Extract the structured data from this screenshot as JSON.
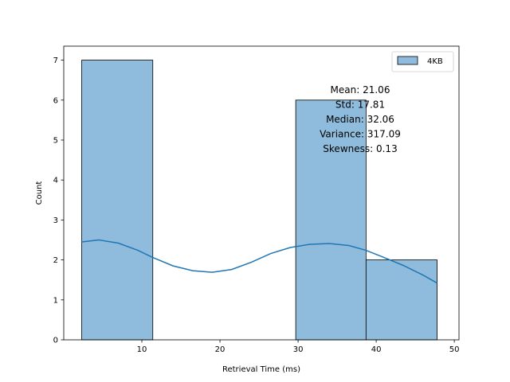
{
  "chart_data": {
    "type": "bar",
    "title": "",
    "xlabel": "Retrieval Time (ms)",
    "ylabel": "Count",
    "xlim": [
      0.0,
      50.6
    ],
    "ylim": [
      0,
      7.35
    ],
    "xticks": [
      10,
      20,
      30,
      40,
      50
    ],
    "yticks": [
      0,
      1,
      2,
      3,
      4,
      5,
      6,
      7
    ],
    "bins": [
      {
        "x0": 2.3,
        "x1": 11.4,
        "count": 7
      },
      {
        "x0": 11.4,
        "x1": 20.5,
        "count": 0
      },
      {
        "x0": 20.5,
        "x1": 29.7,
        "count": 0
      },
      {
        "x0": 29.7,
        "x1": 38.7,
        "count": 6
      },
      {
        "x0": 38.7,
        "x1": 47.8,
        "count": 2
      }
    ],
    "series": [
      {
        "name": "4KB",
        "color": "#1f77b4",
        "fill": "#8fbcdc"
      }
    ],
    "kde": {
      "x": [
        2.3,
        4.5,
        7,
        9.5,
        11.4,
        14,
        16.5,
        19,
        21.5,
        24,
        26.5,
        29,
        31.5,
        34,
        36.5,
        38.7,
        41,
        43.5,
        46,
        47.8
      ],
      "y": [
        2.45,
        2.5,
        2.42,
        2.24,
        2.06,
        1.85,
        1.73,
        1.69,
        1.76,
        1.94,
        2.16,
        2.31,
        2.39,
        2.41,
        2.36,
        2.24,
        2.06,
        1.86,
        1.62,
        1.42
      ]
    },
    "legend": {
      "placement": "top-right",
      "label": "4KB"
    },
    "stats_text": [
      "Mean: 21.06",
      "Std: 17.81",
      "Median: 32.06",
      "Variance: 317.09",
      "Skewness: 0.13"
    ],
    "grid": false
  }
}
